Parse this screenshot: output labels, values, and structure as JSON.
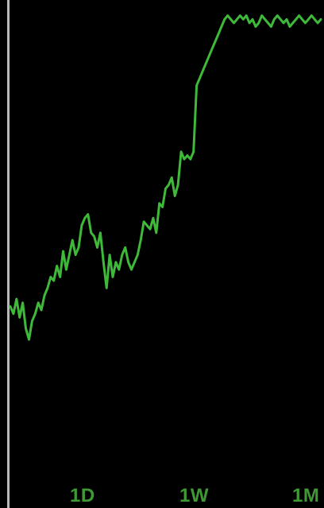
{
  "range_tabs": [
    {
      "label": "1D"
    },
    {
      "label": "1W"
    },
    {
      "label": "1M"
    }
  ],
  "colors": {
    "background": "#000000",
    "line": "#3fb93a",
    "tab_text": "#3f9a35",
    "rail": "#b9b9b9"
  },
  "chart_data": {
    "type": "line",
    "title": "",
    "xlabel": "",
    "ylabel": "",
    "grid": false,
    "xlim": [
      0,
      100
    ],
    "ylim": [
      0,
      100
    ],
    "series": [
      {
        "x": [
          0,
          1,
          2,
          3,
          4,
          5,
          6,
          7,
          8,
          9,
          10,
          11,
          12,
          13,
          14,
          15,
          16,
          17,
          18,
          19,
          20,
          21,
          22,
          23,
          24,
          25,
          26,
          27,
          28,
          29,
          30,
          31,
          32,
          33,
          34,
          35,
          36,
          37,
          38,
          39,
          40,
          41,
          42,
          43,
          44,
          45,
          46,
          47,
          48,
          49,
          50,
          51,
          52,
          53,
          54,
          55,
          56,
          57,
          58,
          59,
          60,
          61,
          62,
          63,
          64,
          65,
          66,
          67,
          68,
          69,
          70,
          71,
          72,
          73,
          74,
          75,
          76,
          77,
          78,
          79,
          80,
          81,
          82,
          83,
          84,
          85,
          86,
          87,
          88,
          89,
          90,
          91,
          92,
          93,
          94,
          95,
          96,
          97,
          98,
          99,
          100
        ],
        "values": [
          20,
          18,
          22,
          17,
          21,
          14,
          11,
          16,
          18,
          21,
          19,
          23,
          25,
          28,
          27,
          31,
          28,
          35,
          30,
          34,
          38,
          34,
          36,
          42,
          44,
          45,
          40,
          39,
          36,
          40,
          32,
          25,
          34,
          28,
          32,
          30,
          34,
          36,
          32,
          30,
          32,
          34,
          38,
          43,
          42,
          41,
          44,
          40,
          48,
          47,
          52,
          53,
          55,
          50,
          53,
          62,
          60,
          61,
          60,
          62,
          80,
          82,
          84,
          86,
          88,
          90,
          92,
          94,
          96,
          98,
          99,
          98,
          97,
          98,
          99,
          98,
          99,
          97,
          98,
          96,
          97,
          99,
          98,
          97,
          96,
          98,
          99,
          98,
          97,
          98,
          96,
          97,
          98,
          99,
          98,
          97,
          98,
          99,
          98,
          97,
          98
        ]
      }
    ]
  }
}
